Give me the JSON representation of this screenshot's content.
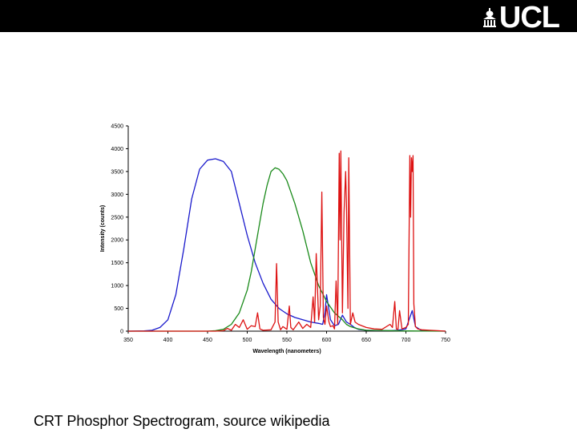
{
  "header": {
    "logo_text": "UCL",
    "logo_icon": "ucl-portico-icon"
  },
  "caption": "CRT Phosphor Spectrogram, source wikipedia",
  "colors": {
    "blue": "#1a1acc",
    "green": "#1a8a1a",
    "red": "#dd1111",
    "bar": "#000000"
  },
  "chart_data": {
    "type": "line",
    "title": "",
    "xlabel": "Wavelength (nanometers)",
    "ylabel": "Intensity (counts)",
    "xlim": [
      350,
      750
    ],
    "ylim": [
      0,
      4500
    ],
    "x_ticks": [
      "350",
      "400",
      "450",
      "500",
      "550",
      "600",
      "650",
      "700",
      "750"
    ],
    "y_ticks": [
      "0",
      "500",
      "1000",
      "1500",
      "2000",
      "2500",
      "3000",
      "3500",
      "4000",
      "4500"
    ],
    "grid": false,
    "legend": "none",
    "series": [
      {
        "color": "#1a1acc",
        "x": [
          350,
          370,
          380,
          390,
          400,
          410,
          420,
          430,
          440,
          450,
          460,
          470,
          480,
          490,
          500,
          510,
          520,
          530,
          540,
          550,
          560,
          570,
          580,
          590,
          595,
          598,
          600,
          605,
          610,
          615,
          620,
          625,
          630,
          635,
          640,
          650,
          660,
          670,
          680,
          690,
          700,
          705,
          708,
          712,
          720,
          750
        ],
        "y": [
          0,
          5,
          20,
          80,
          250,
          800,
          1800,
          2900,
          3550,
          3750,
          3780,
          3720,
          3500,
          2800,
          2100,
          1500,
          1050,
          700,
          500,
          380,
          300,
          250,
          200,
          170,
          150,
          400,
          800,
          250,
          120,
          150,
          350,
          200,
          150,
          80,
          40,
          20,
          15,
          10,
          10,
          20,
          50,
          300,
          450,
          100,
          10,
          0
        ]
      },
      {
        "color": "#1a8a1a",
        "x": [
          350,
          450,
          460,
          470,
          480,
          490,
          500,
          505,
          510,
          515,
          520,
          525,
          530,
          535,
          540,
          545,
          550,
          560,
          570,
          580,
          590,
          600,
          610,
          620,
          625,
          630,
          640,
          650,
          700,
          750
        ],
        "y": [
          0,
          0,
          10,
          40,
          150,
          400,
          900,
          1300,
          1800,
          2300,
          2800,
          3200,
          3500,
          3580,
          3550,
          3450,
          3300,
          2800,
          2200,
          1500,
          1000,
          650,
          400,
          250,
          150,
          100,
          50,
          20,
          5,
          0
        ]
      },
      {
        "color": "#dd1111",
        "x": [
          350,
          460,
          470,
          475,
          480,
          485,
          490,
          495,
          500,
          505,
          510,
          513,
          516,
          520,
          530,
          535,
          537,
          539,
          542,
          545,
          550,
          553,
          555,
          558,
          565,
          570,
          575,
          580,
          583,
          585,
          587,
          590,
          592,
          594,
          596,
          598,
          600,
          603,
          605,
          608,
          610,
          612,
          614,
          616,
          617,
          618,
          620,
          622,
          624,
          625,
          627,
          628,
          630,
          633,
          636,
          640,
          650,
          660,
          670,
          680,
          683,
          686,
          688,
          690,
          692,
          695,
          700,
          703,
          705,
          706,
          707,
          708,
          709,
          710,
          712,
          715,
          720,
          730,
          740,
          750
        ],
        "y": [
          0,
          0,
          10,
          60,
          20,
          150,
          80,
          250,
          40,
          120,
          100,
          400,
          50,
          20,
          30,
          200,
          1480,
          200,
          30,
          100,
          40,
          550,
          80,
          30,
          200,
          60,
          150,
          80,
          750,
          200,
          1700,
          250,
          550,
          3050,
          300,
          150,
          550,
          200,
          100,
          120,
          50,
          1100,
          150,
          3900,
          2000,
          3950,
          400,
          2600,
          3500,
          2800,
          500,
          3800,
          150,
          400,
          200,
          150,
          80,
          50,
          40,
          150,
          80,
          650,
          50,
          40,
          450,
          50,
          80,
          150,
          3850,
          2500,
          3800,
          3500,
          3850,
          600,
          100,
          50,
          30,
          20,
          10,
          0
        ]
      }
    ]
  }
}
